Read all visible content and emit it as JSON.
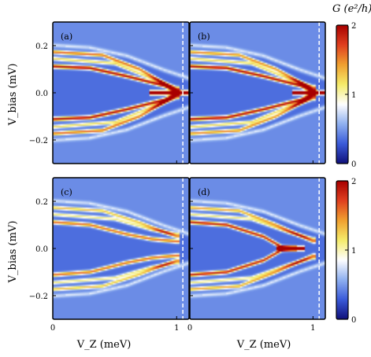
{
  "figure": {
    "colorbar_title": "G (e²/h)",
    "xlabel": "V_Z (meV)",
    "ylabel": "V_bias (mV)"
  },
  "chart_data": {
    "type": "heatmap",
    "description_units": {
      "x": "meV",
      "y": "mV",
      "value": "e^2/h"
    },
    "xlim": [
      0,
      1.1
    ],
    "ylim": [
      -0.3,
      0.3
    ],
    "x_ticks": [
      0,
      1
    ],
    "y_ticks": [
      -0.2,
      0.0,
      0.2
    ],
    "x_tick_labels": [
      "0",
      "1"
    ],
    "y_tick_labels": [
      "−0.2",
      "0.0",
      "0.2"
    ],
    "colorbar": {
      "min": 0,
      "max": 2,
      "ticks": [
        0,
        1,
        2
      ],
      "tick_labels": [
        "0",
        "1",
        "2"
      ],
      "colors": [
        "#10107a",
        "#3a5bd9",
        "#8fb0f0",
        "#ffffff",
        "#f5ec6a",
        "#f0a030",
        "#e04020",
        "#a80000"
      ]
    },
    "background_value": 0.35,
    "outside_gap_value": 0.45,
    "gap_edge": [
      [
        0,
        0.2
      ],
      [
        0.3,
        0.19
      ],
      [
        0.6,
        0.155
      ],
      [
        0.9,
        0.095
      ],
      [
        1.1,
        0.06
      ]
    ],
    "panels": [
      {
        "label": "(a)",
        "dashed_line_x": 1.05,
        "ridges": [
          {
            "points": [
              [
                0,
                0.112
              ],
              [
                0.3,
                0.105
              ],
              [
                0.6,
                0.07
              ],
              [
                0.9,
                0.03
              ],
              [
                1.02,
                0.0
              ]
            ],
            "peak": 2.0
          },
          {
            "points": [
              [
                0,
                0.173
              ],
              [
                0.4,
                0.16
              ],
              [
                0.7,
                0.1
              ],
              [
                1.0,
                0.01
              ]
            ],
            "peak": 1.6
          },
          {
            "points": [
              [
                0,
                0.145
              ],
              [
                0.5,
                0.125
              ],
              [
                0.8,
                0.06
              ],
              [
                1.0,
                0.02
              ]
            ],
            "peak": 1.2
          },
          {
            "points": [
              [
                0.8,
                0.0
              ],
              [
                1.1,
                0.0
              ]
            ],
            "peak": 1.9
          }
        ]
      },
      {
        "label": "(b)",
        "dashed_line_x": 1.05,
        "ridges": [
          {
            "points": [
              [
                0,
                0.112
              ],
              [
                0.3,
                0.105
              ],
              [
                0.6,
                0.07
              ],
              [
                0.9,
                0.03
              ],
              [
                1.02,
                0.0
              ]
            ],
            "peak": 2.0
          },
          {
            "points": [
              [
                0,
                0.173
              ],
              [
                0.4,
                0.16
              ],
              [
                0.7,
                0.1
              ],
              [
                1.0,
                0.015
              ]
            ],
            "peak": 1.5
          },
          {
            "points": [
              [
                0,
                0.145
              ],
              [
                0.5,
                0.125
              ],
              [
                0.8,
                0.06
              ],
              [
                1.0,
                0.025
              ]
            ],
            "peak": 1.2
          },
          {
            "points": [
              [
                0.85,
                0.0
              ],
              [
                1.1,
                0.0
              ]
            ],
            "peak": 1.4
          }
        ]
      },
      {
        "label": "(c)",
        "dashed_line_x": 1.05,
        "ridges": [
          {
            "points": [
              [
                0,
                0.112
              ],
              [
                0.3,
                0.1
              ],
              [
                0.6,
                0.06
              ],
              [
                0.8,
                0.04
              ],
              [
                1.0,
                0.03
              ]
            ],
            "peak": 1.6
          },
          {
            "points": [
              [
                0,
                0.173
              ],
              [
                0.4,
                0.16
              ],
              [
                0.7,
                0.11
              ],
              [
                1.0,
                0.05
              ]
            ],
            "peak": 1.3
          },
          {
            "points": [
              [
                0,
                0.145
              ],
              [
                0.5,
                0.125
              ],
              [
                0.8,
                0.08
              ],
              [
                1.0,
                0.06
              ]
            ],
            "peak": 1.1
          }
        ]
      },
      {
        "label": "(d)",
        "dashed_line_x": 1.05,
        "ridges": [
          {
            "points": [
              [
                0,
                0.112
              ],
              [
                0.3,
                0.1
              ],
              [
                0.6,
                0.05
              ],
              [
                0.75,
                0.005
              ],
              [
                0.85,
                0.0
              ]
            ],
            "peak": 1.9
          },
          {
            "points": [
              [
                0,
                0.173
              ],
              [
                0.4,
                0.16
              ],
              [
                0.7,
                0.1
              ],
              [
                1.0,
                0.03
              ]
            ],
            "peak": 1.4
          },
          {
            "points": [
              [
                0,
                0.145
              ],
              [
                0.5,
                0.125
              ],
              [
                0.8,
                0.07
              ],
              [
                1.0,
                0.04
              ]
            ],
            "peak": 1.1
          },
          {
            "points": [
              [
                0.72,
                0.0
              ],
              [
                0.92,
                0.0
              ]
            ],
            "peak": 1.8
          }
        ]
      }
    ]
  }
}
